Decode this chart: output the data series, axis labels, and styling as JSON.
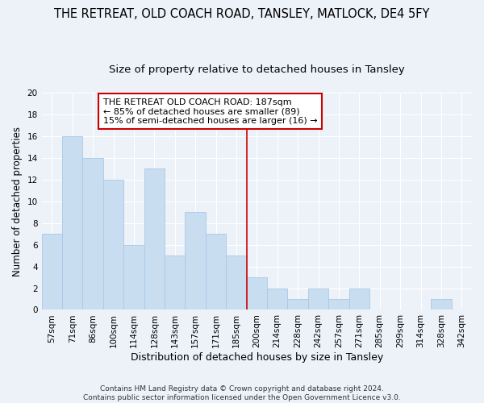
{
  "title": "THE RETREAT, OLD COACH ROAD, TANSLEY, MATLOCK, DE4 5FY",
  "subtitle": "Size of property relative to detached houses in Tansley",
  "xlabel": "Distribution of detached houses by size in Tansley",
  "ylabel": "Number of detached properties",
  "categories": [
    "57sqm",
    "71sqm",
    "86sqm",
    "100sqm",
    "114sqm",
    "128sqm",
    "143sqm",
    "157sqm",
    "171sqm",
    "185sqm",
    "200sqm",
    "214sqm",
    "228sqm",
    "242sqm",
    "257sqm",
    "271sqm",
    "285sqm",
    "299sqm",
    "314sqm",
    "328sqm",
    "342sqm"
  ],
  "values": [
    7,
    16,
    14,
    12,
    6,
    13,
    5,
    9,
    7,
    5,
    3,
    2,
    1,
    2,
    1,
    2,
    0,
    0,
    0,
    1,
    0
  ],
  "bar_color": "#c9ddf0",
  "bar_edge_color": "#a8c8e8",
  "vline_x": 9.5,
  "vline_color": "#cc0000",
  "annotation_title": "THE RETREAT OLD COACH ROAD: 187sqm",
  "annotation_line1": "← 85% of detached houses are smaller (89)",
  "annotation_line2": "15% of semi-detached houses are larger (16) →",
  "annotation_box_color": "#cc0000",
  "ylim": [
    0,
    20
  ],
  "yticks": [
    0,
    2,
    4,
    6,
    8,
    10,
    12,
    14,
    16,
    18,
    20
  ],
  "footnote1": "Contains HM Land Registry data © Crown copyright and database right 2024.",
  "footnote2": "Contains public sector information licensed under the Open Government Licence v3.0.",
  "bg_color": "#edf2f9",
  "grid_color": "#ffffff",
  "title_fontsize": 10.5,
  "subtitle_fontsize": 9.5,
  "xlabel_fontsize": 9,
  "ylabel_fontsize": 8.5,
  "tick_fontsize": 7.5,
  "annotation_fontsize": 8,
  "footnote_fontsize": 6.5
}
